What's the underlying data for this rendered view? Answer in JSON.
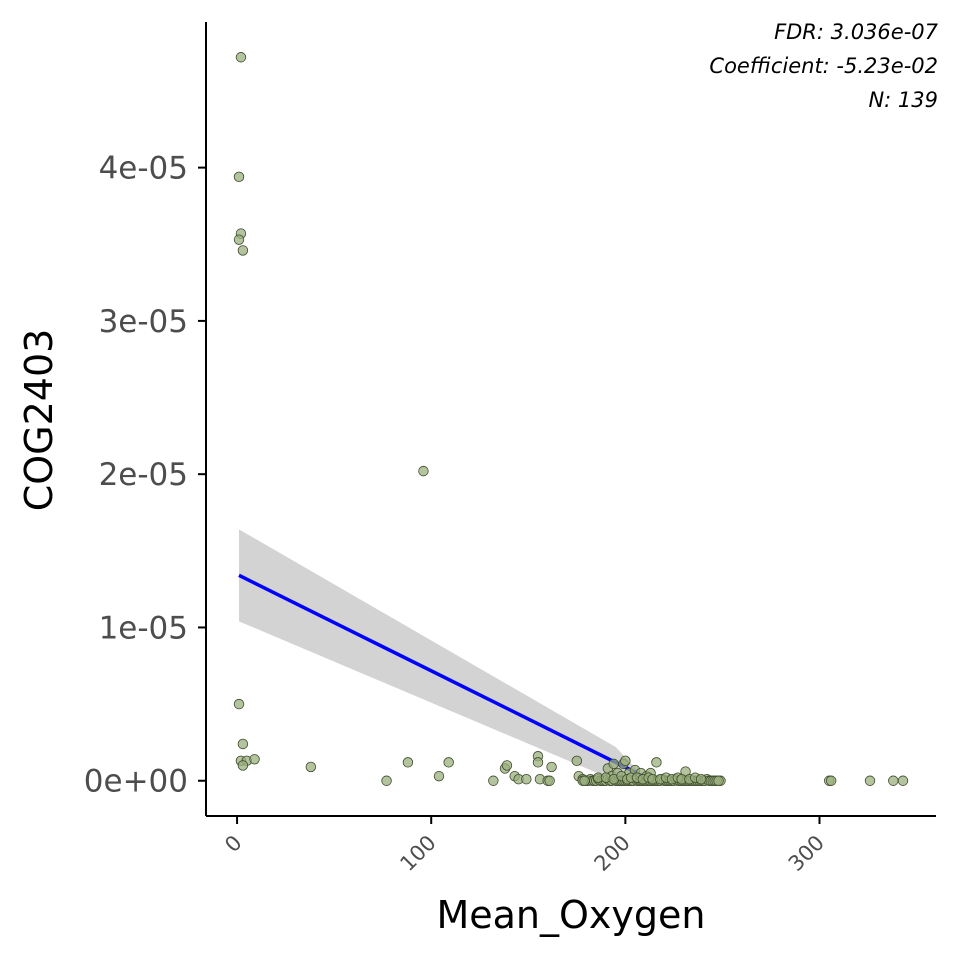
{
  "chart_data": {
    "type": "scatter",
    "title": "",
    "xlabel": "Mean_Oxygen",
    "ylabel": "COG2403",
    "xlim": [
      -16,
      360
    ],
    "ylim": [
      -2.3e-06,
      4.95e-05
    ],
    "x_ticks": [
      0,
      100,
      200,
      300
    ],
    "x_tick_labels": [
      "0",
      "100",
      "200",
      "300"
    ],
    "y_ticks": [
      0,
      1e-05,
      2e-05,
      3e-05,
      4e-05
    ],
    "y_tick_labels": [
      "0e+00",
      "1e-05",
      "2e-05",
      "3e-05",
      "4e-05"
    ],
    "grid": false,
    "annotations": [
      "FDR: 3.036e-07",
      "Coefficient: -5.23e-02",
      "N: 139"
    ],
    "colors": {
      "points_fill": "#9bb07f",
      "points_stroke": "#3d4a2b",
      "fit_line": "#0000ff",
      "ci_band": "#d3d3d3"
    },
    "fit_line": {
      "x": [
        1,
        210
      ],
      "y": [
        1.34e-05,
        2.5e-07
      ]
    },
    "confidence_band": {
      "x": [
        1,
        195,
        210
      ],
      "lower": [
        1.04e-05,
        0,
        0
      ],
      "upper": [
        1.64e-05,
        2.2e-06,
        2e-07
      ]
    },
    "points": [
      [
        2,
        4.72e-05
      ],
      [
        1,
        3.94e-05
      ],
      [
        2,
        3.57e-05
      ],
      [
        1,
        3.53e-05
      ],
      [
        3,
        3.46e-05
      ],
      [
        96,
        2.02e-05
      ],
      [
        1,
        5e-06
      ],
      [
        3,
        2.4e-06
      ],
      [
        2,
        1.3e-06
      ],
      [
        5,
        1.3e-06
      ],
      [
        9,
        1.4e-06
      ],
      [
        3,
        1e-06
      ],
      [
        38,
        9e-07
      ],
      [
        77,
        0
      ],
      [
        88,
        1.2e-06
      ],
      [
        104,
        3e-07
      ],
      [
        109,
        1.2e-06
      ],
      [
        132,
        0
      ],
      [
        138,
        8e-07
      ],
      [
        139,
        1e-06
      ],
      [
        143,
        3e-07
      ],
      [
        145,
        1e-07
      ],
      [
        149,
        1e-07
      ],
      [
        155,
        1.6e-06
      ],
      [
        155,
        1.2e-06
      ],
      [
        156,
        1e-07
      ],
      [
        160,
        0
      ],
      [
        161,
        0
      ],
      [
        162,
        9e-07
      ],
      [
        175,
        1.3e-06
      ],
      [
        176,
        3e-07
      ],
      [
        178,
        1e-07
      ],
      [
        180,
        0
      ],
      [
        181,
        0
      ],
      [
        182,
        1e-07
      ],
      [
        183,
        0
      ],
      [
        184,
        0
      ],
      [
        185,
        0
      ],
      [
        186,
        1e-07
      ],
      [
        187,
        0
      ],
      [
        188,
        0
      ],
      [
        189,
        0
      ],
      [
        190,
        0
      ],
      [
        191,
        1e-07
      ],
      [
        191,
        8e-07
      ],
      [
        192,
        0
      ],
      [
        193,
        0
      ],
      [
        193,
        3e-07
      ],
      [
        194,
        1.1e-06
      ],
      [
        195,
        0
      ],
      [
        196,
        0
      ],
      [
        196,
        5e-07
      ],
      [
        197,
        0
      ],
      [
        198,
        0
      ],
      [
        199,
        1.1e-06
      ],
      [
        199,
        0
      ],
      [
        200,
        0
      ],
      [
        200,
        1.3e-06
      ],
      [
        201,
        0
      ],
      [
        202,
        0
      ],
      [
        202,
        5e-07
      ],
      [
        203,
        0
      ],
      [
        204,
        0
      ],
      [
        205,
        7e-07
      ],
      [
        206,
        0
      ],
      [
        207,
        0
      ],
      [
        207,
        1e-07
      ],
      [
        208,
        0
      ],
      [
        208,
        5e-07
      ],
      [
        209,
        0
      ],
      [
        210,
        0
      ],
      [
        211,
        0
      ],
      [
        211,
        3e-07
      ],
      [
        212,
        0
      ],
      [
        213,
        0
      ],
      [
        213,
        5e-07
      ],
      [
        214,
        0
      ],
      [
        215,
        0
      ],
      [
        216,
        1.2e-06
      ],
      [
        216,
        0
      ],
      [
        217,
        0
      ],
      [
        218,
        0
      ],
      [
        219,
        1e-07
      ],
      [
        220,
        0
      ],
      [
        221,
        0
      ],
      [
        222,
        0
      ],
      [
        223,
        0
      ],
      [
        224,
        0
      ],
      [
        225,
        0
      ],
      [
        226,
        1e-07
      ],
      [
        227,
        0
      ],
      [
        228,
        0
      ],
      [
        229,
        0
      ],
      [
        230,
        0
      ],
      [
        231,
        6e-07
      ],
      [
        231,
        0
      ],
      [
        232,
        0
      ],
      [
        233,
        0
      ],
      [
        234,
        0
      ],
      [
        235,
        0
      ],
      [
        236,
        0
      ],
      [
        237,
        0
      ],
      [
        238,
        0
      ],
      [
        239,
        0
      ],
      [
        240,
        0
      ],
      [
        241,
        0
      ],
      [
        242,
        1e-07
      ],
      [
        243,
        0
      ],
      [
        244,
        0
      ],
      [
        245,
        0
      ],
      [
        249,
        0
      ],
      [
        305,
        0
      ],
      [
        306,
        0
      ],
      [
        326,
        0
      ],
      [
        338,
        0
      ],
      [
        343,
        0
      ],
      [
        186,
        2e-07
      ],
      [
        190,
        2e-07
      ],
      [
        194,
        1e-07
      ],
      [
        198,
        3e-07
      ],
      [
        201,
        1e-07
      ],
      [
        203,
        2e-07
      ],
      [
        206,
        2e-07
      ],
      [
        209,
        1e-07
      ],
      [
        212,
        2e-07
      ],
      [
        214,
        1e-07
      ],
      [
        218,
        1e-07
      ],
      [
        221,
        2e-07
      ],
      [
        224,
        1e-07
      ],
      [
        227,
        2e-07
      ],
      [
        229,
        1e-07
      ],
      [
        233,
        1e-07
      ],
      [
        236,
        2e-07
      ],
      [
        239,
        1e-07
      ],
      [
        178,
        0
      ],
      [
        179,
        0
      ],
      [
        246,
        0
      ],
      [
        247,
        0
      ],
      [
        248,
        0
      ]
    ]
  }
}
